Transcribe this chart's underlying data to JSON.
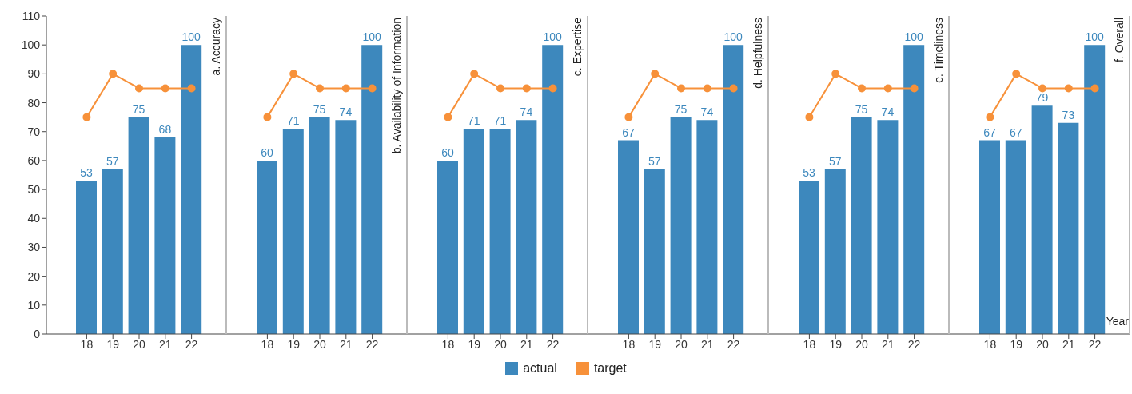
{
  "chart_data": [
    {
      "type": "bar",
      "title": "a. Accuracy",
      "categories": [
        "18",
        "19",
        "20",
        "21",
        "22"
      ],
      "series": [
        {
          "name": "actual",
          "color": "#3d88bd",
          "values": [
            53,
            57,
            75,
            68,
            100
          ],
          "value_labels": [
            "53",
            "57",
            "75",
            "68",
            "100"
          ]
        },
        {
          "name": "target",
          "type": "line",
          "color": "#f7913a",
          "values": [
            75,
            90,
            85,
            85,
            85
          ]
        }
      ],
      "ylim": [
        0,
        110
      ],
      "yticks": [
        0,
        10,
        20,
        30,
        40,
        50,
        60,
        70,
        80,
        90,
        100,
        110
      ],
      "marker": "circle",
      "legend": "bottom"
    },
    {
      "type": "bar",
      "title": "b. Availability of Information",
      "categories": [
        "18",
        "19",
        "20",
        "21",
        "22"
      ],
      "series": [
        {
          "color": "#3d88bd",
          "values": [
            60,
            71,
            75,
            74,
            100
          ],
          "value_labels": [
            "60",
            "71",
            "75",
            "74",
            "100"
          ]
        },
        {
          "type": "line",
          "color": "#f7913a",
          "values": [
            75,
            90,
            85,
            85,
            85
          ]
        }
      ],
      "ylim": [
        0,
        110
      ],
      "tick_labels": "x",
      "marker": "circle"
    },
    {
      "type": "bar",
      "title": "c. Expertise",
      "categories": [
        "18",
        "19",
        "20",
        "21",
        "22"
      ],
      "series": [
        {
          "color": "#3d88bd",
          "values": [
            60,
            71,
            71,
            74,
            100
          ],
          "value_labels": [
            "60",
            "71",
            "71",
            "74",
            "100"
          ]
        },
        {
          "type": "line",
          "color": "#f7913a",
          "values": [
            75,
            90,
            85,
            85,
            85
          ]
        }
      ],
      "ylim": [
        0,
        110
      ],
      "tick_labels": "x",
      "marker": "circle"
    },
    {
      "type": "bar",
      "title": "d. Helpfulness",
      "categories": [
        "18",
        "19",
        "20",
        "21",
        "22"
      ],
      "series": [
        {
          "color": "#3d88bd",
          "values": [
            67,
            57,
            75,
            74,
            100
          ],
          "value_labels": [
            "67",
            "57",
            "75",
            "74",
            "100"
          ]
        },
        {
          "type": "line",
          "color": "#f7913a",
          "values": [
            75,
            90,
            85,
            85,
            85
          ]
        }
      ],
      "ylim": [
        0,
        110
      ],
      "tick_labels": "x",
      "marker": "circle"
    },
    {
      "type": "bar",
      "title": "e. Timeliness",
      "categories": [
        "18",
        "19",
        "20",
        "21",
        "22"
      ],
      "series": [
        {
          "color": "#3d88bd",
          "values": [
            53,
            57,
            75,
            74,
            100
          ],
          "value_labels": [
            "53",
            "57",
            "75",
            "74",
            "100"
          ]
        },
        {
          "type": "line",
          "color": "#f7913a",
          "values": [
            75,
            90,
            85,
            85,
            85
          ]
        }
      ],
      "ylim": [
        0,
        110
      ],
      "tick_labels": "x",
      "marker": "circle"
    },
    {
      "type": "bar",
      "title": "f. Overall",
      "xlabel": "Year",
      "categories": [
        "18",
        "19",
        "20",
        "21",
        "22"
      ],
      "series": [
        {
          "color": "#3d88bd",
          "values": [
            67,
            67,
            79,
            73,
            100
          ],
          "value_labels": [
            "67",
            "67",
            "79",
            "73",
            "100"
          ]
        },
        {
          "type": "line",
          "color": "#f7913a",
          "values": [
            75,
            90,
            85,
            85,
            85
          ]
        }
      ],
      "ylim": [
        0,
        110
      ],
      "tick_labels": "x",
      "marker": "circle"
    }
  ]
}
